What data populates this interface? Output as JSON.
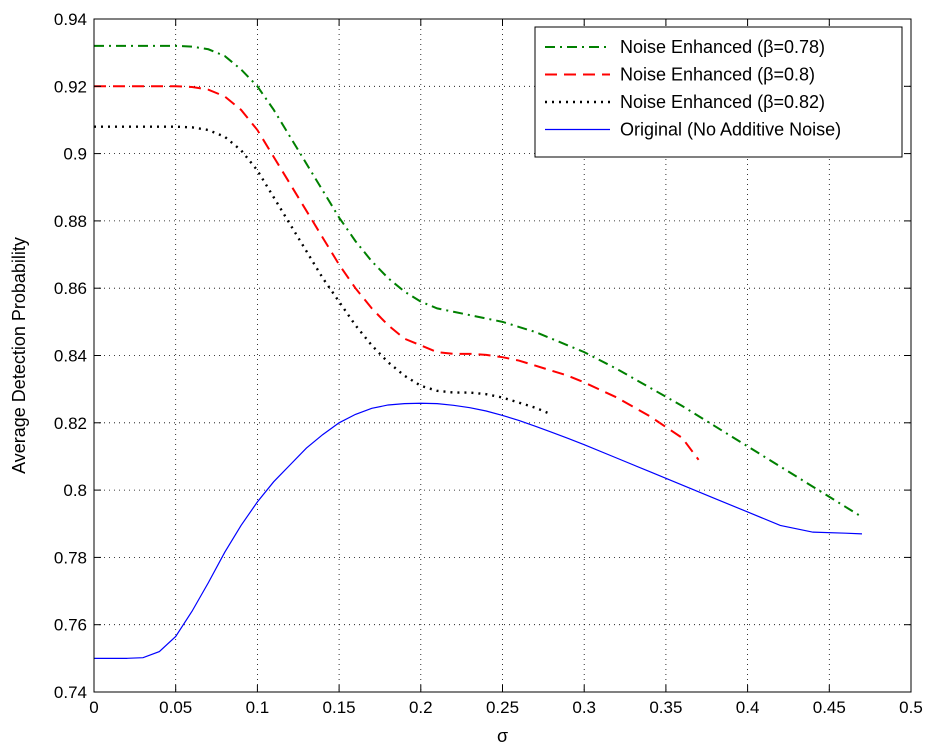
{
  "chart_data": {
    "type": "line",
    "xlabel": "σ",
    "ylabel": "Average Detection Probability",
    "xlim": [
      0,
      0.5
    ],
    "ylim": [
      0.74,
      0.94
    ],
    "xticks": [
      "0",
      "0.05",
      "0.1",
      "0.15",
      "0.2",
      "0.25",
      "0.3",
      "0.35",
      "0.4",
      "0.45",
      "0.5"
    ],
    "yticks": [
      "0.74",
      "0.76",
      "0.78",
      "0.8",
      "0.82",
      "0.84",
      "0.86",
      "0.88",
      "0.9",
      "0.92",
      "0.94"
    ],
    "grid": true,
    "legend_position": "top-right",
    "series": [
      {
        "name": "Noise Enhanced (β=0.78)",
        "color": "#008000",
        "dash": "dash-dot",
        "x": [
          0,
          0.02,
          0.04,
          0.05,
          0.06,
          0.07,
          0.08,
          0.09,
          0.1,
          0.11,
          0.12,
          0.13,
          0.14,
          0.15,
          0.16,
          0.17,
          0.18,
          0.19,
          0.2,
          0.21,
          0.22,
          0.23,
          0.24,
          0.25,
          0.26,
          0.27,
          0.28,
          0.29,
          0.3,
          0.32,
          0.34,
          0.36,
          0.38,
          0.4,
          0.42,
          0.44,
          0.46,
          0.47
        ],
        "y": [
          0.932,
          0.932,
          0.932,
          0.932,
          0.9318,
          0.931,
          0.929,
          0.925,
          0.92,
          0.913,
          0.905,
          0.897,
          0.889,
          0.881,
          0.874,
          0.868,
          0.863,
          0.859,
          0.856,
          0.854,
          0.853,
          0.852,
          0.851,
          0.85,
          0.8485,
          0.847,
          0.845,
          0.843,
          0.841,
          0.836,
          0.8305,
          0.825,
          0.819,
          0.813,
          0.807,
          0.801,
          0.795,
          0.792
        ]
      },
      {
        "name": "Noise Enhanced (β=0.8)",
        "color": "#ff0000",
        "dash": "dashed",
        "x": [
          0,
          0.02,
          0.04,
          0.05,
          0.06,
          0.07,
          0.08,
          0.09,
          0.1,
          0.11,
          0.12,
          0.13,
          0.14,
          0.15,
          0.16,
          0.17,
          0.18,
          0.19,
          0.2,
          0.21,
          0.22,
          0.23,
          0.24,
          0.25,
          0.26,
          0.27,
          0.28,
          0.29,
          0.3,
          0.32,
          0.34,
          0.36,
          0.37
        ],
        "y": [
          0.92,
          0.92,
          0.92,
          0.92,
          0.9198,
          0.919,
          0.917,
          0.913,
          0.907,
          0.899,
          0.891,
          0.883,
          0.875,
          0.867,
          0.86,
          0.854,
          0.849,
          0.845,
          0.843,
          0.841,
          0.8405,
          0.8405,
          0.8402,
          0.8395,
          0.8385,
          0.837,
          0.8355,
          0.834,
          0.832,
          0.8275,
          0.822,
          0.8155,
          0.809
        ]
      },
      {
        "name": "Noise Enhanced (β=0.82)",
        "color": "#000000",
        "dash": "dotted",
        "x": [
          0,
          0.02,
          0.04,
          0.05,
          0.06,
          0.07,
          0.08,
          0.09,
          0.1,
          0.11,
          0.12,
          0.13,
          0.14,
          0.15,
          0.16,
          0.17,
          0.18,
          0.19,
          0.2,
          0.21,
          0.22,
          0.23,
          0.24,
          0.25,
          0.26,
          0.27,
          0.28
        ],
        "y": [
          0.908,
          0.908,
          0.908,
          0.908,
          0.9078,
          0.907,
          0.905,
          0.901,
          0.895,
          0.887,
          0.879,
          0.871,
          0.863,
          0.856,
          0.849,
          0.843,
          0.838,
          0.834,
          0.831,
          0.8295,
          0.829,
          0.829,
          0.8285,
          0.8275,
          0.826,
          0.8245,
          0.8225
        ]
      },
      {
        "name": "Original (No Additive Noise)",
        "color": "#0000ff",
        "dash": "solid",
        "x": [
          0,
          0.01,
          0.02,
          0.03,
          0.04,
          0.05,
          0.06,
          0.07,
          0.08,
          0.09,
          0.1,
          0.11,
          0.12,
          0.13,
          0.14,
          0.15,
          0.16,
          0.17,
          0.18,
          0.19,
          0.2,
          0.21,
          0.22,
          0.23,
          0.24,
          0.25,
          0.26,
          0.27,
          0.28,
          0.29,
          0.3,
          0.32,
          0.34,
          0.36,
          0.38,
          0.4,
          0.42,
          0.44,
          0.46,
          0.47
        ],
        "y": [
          0.75,
          0.75,
          0.75,
          0.7502,
          0.752,
          0.7565,
          0.764,
          0.7725,
          0.7815,
          0.7895,
          0.7965,
          0.8025,
          0.8075,
          0.8125,
          0.8165,
          0.82,
          0.8225,
          0.8243,
          0.8253,
          0.8257,
          0.8258,
          0.8257,
          0.8252,
          0.8245,
          0.8235,
          0.8222,
          0.8207,
          0.819,
          0.8172,
          0.8154,
          0.8135,
          0.8095,
          0.8055,
          0.8015,
          0.7975,
          0.7935,
          0.7895,
          0.7875,
          0.7872,
          0.787
        ]
      }
    ]
  }
}
